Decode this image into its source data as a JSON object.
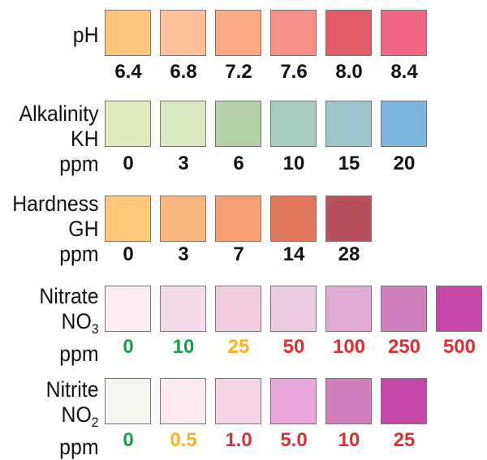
{
  "rows": [
    {
      "labels": [
        "pH"
      ],
      "swatches": [
        {
          "color": "#fdc57e",
          "value": "6.4",
          "value_color": "#111111"
        },
        {
          "color": "#fbbf9a",
          "value": "6.8",
          "value_color": "#111111"
        },
        {
          "color": "#f9aa84",
          "value": "7.2",
          "value_color": "#111111"
        },
        {
          "color": "#f68f87",
          "value": "7.6",
          "value_color": "#111111"
        },
        {
          "color": "#e25c66",
          "value": "8.0",
          "value_color": "#111111"
        },
        {
          "color": "#ee6682",
          "value": "8.4",
          "value_color": "#111111"
        }
      ]
    },
    {
      "labels": [
        "Alkalinity",
        "KH",
        "ppm"
      ],
      "swatches": [
        {
          "color": "#dfebbc",
          "value": "0",
          "value_color": "#111111"
        },
        {
          "color": "#dae8c4",
          "value": "3",
          "value_color": "#111111"
        },
        {
          "color": "#b6d0aa",
          "value": "6",
          "value_color": "#111111"
        },
        {
          "color": "#a9ccc0",
          "value": "10",
          "value_color": "#111111"
        },
        {
          "color": "#9ac6cb",
          "value": "15",
          "value_color": "#111111"
        },
        {
          "color": "#7db7dd",
          "value": "20",
          "value_color": "#111111"
        }
      ]
    },
    {
      "labels": [
        "Hardness",
        "GH",
        "ppm"
      ],
      "swatches": [
        {
          "color": "#fec77a",
          "value": "0",
          "value_color": "#111111"
        },
        {
          "color": "#fbb67e",
          "value": "3",
          "value_color": "#111111"
        },
        {
          "color": "#f6a074",
          "value": "7",
          "value_color": "#111111"
        },
        {
          "color": "#e0775d",
          "value": "14",
          "value_color": "#111111"
        },
        {
          "color": "#b9505d",
          "value": "28",
          "value_color": "#111111"
        }
      ]
    },
    {
      "labels": [
        "Nitrate",
        "NO",
        "ppm"
      ],
      "subscript": "3",
      "swatches": [
        {
          "color": "#fcebf3",
          "value": "0",
          "value_color": "#16a04a"
        },
        {
          "color": "#f4dbea",
          "value": "10",
          "value_color": "#16a04a"
        },
        {
          "color": "#f1cde0",
          "value": "25",
          "value_color": "#fbb31a"
        },
        {
          "color": "#eacbe1",
          "value": "50",
          "value_color": "#dc2f35"
        },
        {
          "color": "#e1aad2",
          "value": "100",
          "value_color": "#dc2f35"
        },
        {
          "color": "#d07ebe",
          "value": "250",
          "value_color": "#dc2f35"
        },
        {
          "color": "#c548a9",
          "value": "500",
          "value_color": "#dc2f35"
        }
      ]
    },
    {
      "labels": [
        "Nitrite",
        "NO",
        "ppm"
      ],
      "subscript": "2",
      "swatches": [
        {
          "color": "#f7f7f1",
          "value": "0",
          "value_color": "#16a04a"
        },
        {
          "color": "#fce8ef",
          "value": "0.5",
          "value_color": "#fbb31a"
        },
        {
          "color": "#f3d5e6",
          "value": "1.0",
          "value_color": "#dc2f35"
        },
        {
          "color": "#e8a7d8",
          "value": "5.0",
          "value_color": "#dc2f35"
        },
        {
          "color": "#d17eba",
          "value": "10",
          "value_color": "#dc2f35"
        },
        {
          "color": "#c548a9",
          "value": "25",
          "value_color": "#dc2f35"
        }
      ]
    }
  ]
}
